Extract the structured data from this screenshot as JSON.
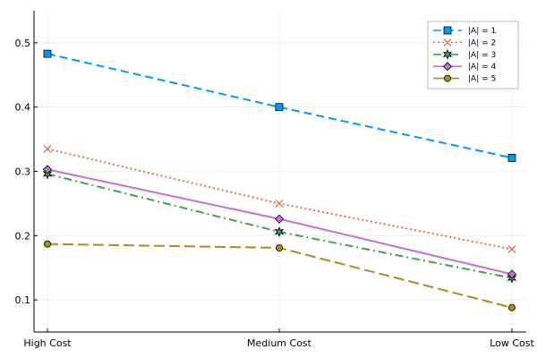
{
  "chart_data": {
    "type": "line",
    "categories": [
      "High Cost",
      "Medium Cost",
      "Low Cost"
    ],
    "ylim": [
      0.05,
      0.55
    ],
    "yticks": [
      0.1,
      0.2,
      0.3,
      0.4,
      0.5
    ],
    "ytick_labels": [
      "0.1",
      "0.2",
      "0.3",
      "0.4",
      "0.5"
    ],
    "grid": true,
    "legend_position": "top-right",
    "series": [
      {
        "name": "|A| = 1",
        "values": [
          0.483,
          0.4,
          0.321
        ],
        "color": "#009af9",
        "dash": "dash",
        "marker": "square"
      },
      {
        "name": "|A| = 2",
        "values": [
          0.335,
          0.25,
          0.179
        ],
        "color": "#e26f46",
        "dash": "dot",
        "marker": "x"
      },
      {
        "name": "|A| = 3",
        "values": [
          0.296,
          0.206,
          0.134
        ],
        "color": "#3da44d",
        "dash": "dashdot",
        "marker": "star"
      },
      {
        "name": "|A| = 4",
        "values": [
          0.303,
          0.226,
          0.14
        ],
        "color": "#c271d2",
        "dash": "solid",
        "marker": "diamond"
      },
      {
        "name": "|A| = 5",
        "values": [
          0.187,
          0.181,
          0.088
        ],
        "color": "#ac8d18",
        "dash": "longdash",
        "marker": "circle"
      }
    ]
  }
}
